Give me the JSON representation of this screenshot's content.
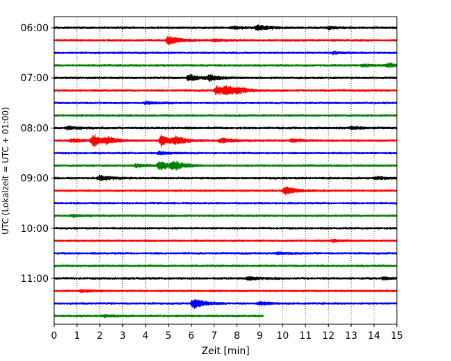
{
  "chart_data": {
    "type": "line",
    "title": "",
    "xlabel": "Zeit  [min]",
    "ylabel": "UTC (Lokalzeit = UTC + 01:00)",
    "xlim": [
      0,
      15
    ],
    "x_ticks": [
      "0",
      "1",
      "2",
      "3",
      "4",
      "5",
      "6",
      "7",
      "8",
      "9",
      "10",
      "11",
      "12",
      "13",
      "14",
      "15"
    ],
    "y_tick_labels": [
      "06:00",
      "07:00",
      "08:00",
      "09:00",
      "10:00",
      "11:00"
    ],
    "x_grid": "dotted",
    "trace_colors": [
      "#000000",
      "#ff0000",
      "#0000ff",
      "#008000"
    ],
    "rows_per_hour": 4,
    "minutes_per_row": 15,
    "traces": [
      {
        "start": "06:00",
        "color": "#000000",
        "end_min": 15,
        "base_amp": 0.12,
        "events": [
          {
            "t": 8.9,
            "amp": 0.55
          },
          {
            "t": 7.8,
            "amp": 0.25
          },
          {
            "t": 12.0,
            "amp": 0.2
          }
        ]
      },
      {
        "start": "06:15",
        "color": "#ff0000",
        "end_min": 15,
        "base_amp": 0.12,
        "events": [
          {
            "t": 5.0,
            "amp": 0.85
          },
          {
            "t": 7.0,
            "amp": 0.2
          }
        ]
      },
      {
        "start": "06:30",
        "color": "#0000ff",
        "end_min": 15,
        "base_amp": 0.1,
        "events": [
          {
            "t": 12.2,
            "amp": 0.2
          }
        ]
      },
      {
        "start": "06:45",
        "color": "#008000",
        "end_min": 15,
        "base_amp": 0.12,
        "events": [
          {
            "t": 14.6,
            "amp": 0.35
          },
          {
            "t": 13.5,
            "amp": 0.2
          }
        ]
      },
      {
        "start": "07:00",
        "color": "#000000",
        "end_min": 15,
        "base_amp": 0.12,
        "events": [
          {
            "t": 5.9,
            "amp": 0.6
          },
          {
            "t": 6.8,
            "amp": 0.5
          }
        ]
      },
      {
        "start": "07:15",
        "color": "#ff0000",
        "end_min": 15,
        "base_amp": 0.12,
        "events": [
          {
            "t": 7.1,
            "amp": 0.8
          },
          {
            "t": 7.5,
            "amp": 0.65
          },
          {
            "t": 8.0,
            "amp": 0.35
          }
        ]
      },
      {
        "start": "07:30",
        "color": "#0000ff",
        "end_min": 15,
        "base_amp": 0.1,
        "events": [
          {
            "t": 4.0,
            "amp": 0.25
          }
        ]
      },
      {
        "start": "07:45",
        "color": "#008000",
        "end_min": 15,
        "base_amp": 0.12,
        "events": []
      },
      {
        "start": "08:00",
        "color": "#000000",
        "end_min": 15,
        "base_amp": 0.14,
        "events": [
          {
            "t": 0.6,
            "amp": 0.25
          },
          {
            "t": 13.0,
            "amp": 0.2
          }
        ]
      },
      {
        "start": "08:15",
        "color": "#ff0000",
        "end_min": 15,
        "base_amp": 0.12,
        "events": [
          {
            "t": 0.8,
            "amp": 0.35
          },
          {
            "t": 1.7,
            "amp": 1.0
          },
          {
            "t": 2.3,
            "amp": 0.45
          },
          {
            "t": 4.7,
            "amp": 1.0
          },
          {
            "t": 5.3,
            "amp": 0.6
          },
          {
            "t": 7.3,
            "amp": 0.45
          },
          {
            "t": 10.4,
            "amp": 0.3
          }
        ]
      },
      {
        "start": "08:30",
        "color": "#0000ff",
        "end_min": 15,
        "base_amp": 0.1,
        "events": [
          {
            "t": 4.6,
            "amp": 0.25
          }
        ]
      },
      {
        "start": "08:45",
        "color": "#008000",
        "end_min": 15,
        "base_amp": 0.12,
        "events": [
          {
            "t": 4.6,
            "amp": 0.8
          },
          {
            "t": 5.2,
            "amp": 0.75
          },
          {
            "t": 3.6,
            "amp": 0.3
          }
        ]
      },
      {
        "start": "09:00",
        "color": "#000000",
        "end_min": 15,
        "base_amp": 0.12,
        "events": [
          {
            "t": 2.0,
            "amp": 0.45
          },
          {
            "t": 14.1,
            "amp": 0.25
          }
        ]
      },
      {
        "start": "09:15",
        "color": "#ff0000",
        "end_min": 15,
        "base_amp": 0.1,
        "events": [
          {
            "t": 10.1,
            "amp": 0.75
          }
        ]
      },
      {
        "start": "09:30",
        "color": "#0000ff",
        "end_min": 15,
        "base_amp": 0.1,
        "events": []
      },
      {
        "start": "09:45",
        "color": "#008000",
        "end_min": 15,
        "base_amp": 0.12,
        "events": [
          {
            "t": 0.8,
            "amp": 0.2
          }
        ]
      },
      {
        "start": "10:00",
        "color": "#000000",
        "end_min": 15,
        "base_amp": 0.1,
        "events": []
      },
      {
        "start": "10:15",
        "color": "#ff0000",
        "end_min": 15,
        "base_amp": 0.1,
        "events": [
          {
            "t": 12.2,
            "amp": 0.2
          }
        ]
      },
      {
        "start": "10:30",
        "color": "#0000ff",
        "end_min": 15,
        "base_amp": 0.1,
        "events": [
          {
            "t": 9.8,
            "amp": 0.2
          }
        ]
      },
      {
        "start": "10:45",
        "color": "#008000",
        "end_min": 15,
        "base_amp": 0.12,
        "events": []
      },
      {
        "start": "11:00",
        "color": "#000000",
        "end_min": 15,
        "base_amp": 0.12,
        "events": [
          {
            "t": 8.5,
            "amp": 0.35
          },
          {
            "t": 14.4,
            "amp": 0.2
          }
        ]
      },
      {
        "start": "11:15",
        "color": "#ff0000",
        "end_min": 15,
        "base_amp": 0.1,
        "events": [
          {
            "t": 1.2,
            "amp": 0.25
          }
        ]
      },
      {
        "start": "11:30",
        "color": "#0000ff",
        "end_min": 15,
        "base_amp": 0.1,
        "events": [
          {
            "t": 6.1,
            "amp": 1.0
          },
          {
            "t": 9.0,
            "amp": 0.3
          }
        ]
      },
      {
        "start": "11:45",
        "color": "#008000",
        "end_min": 9.15,
        "base_amp": 0.12,
        "events": [
          {
            "t": 2.2,
            "amp": 0.2
          }
        ]
      }
    ]
  }
}
